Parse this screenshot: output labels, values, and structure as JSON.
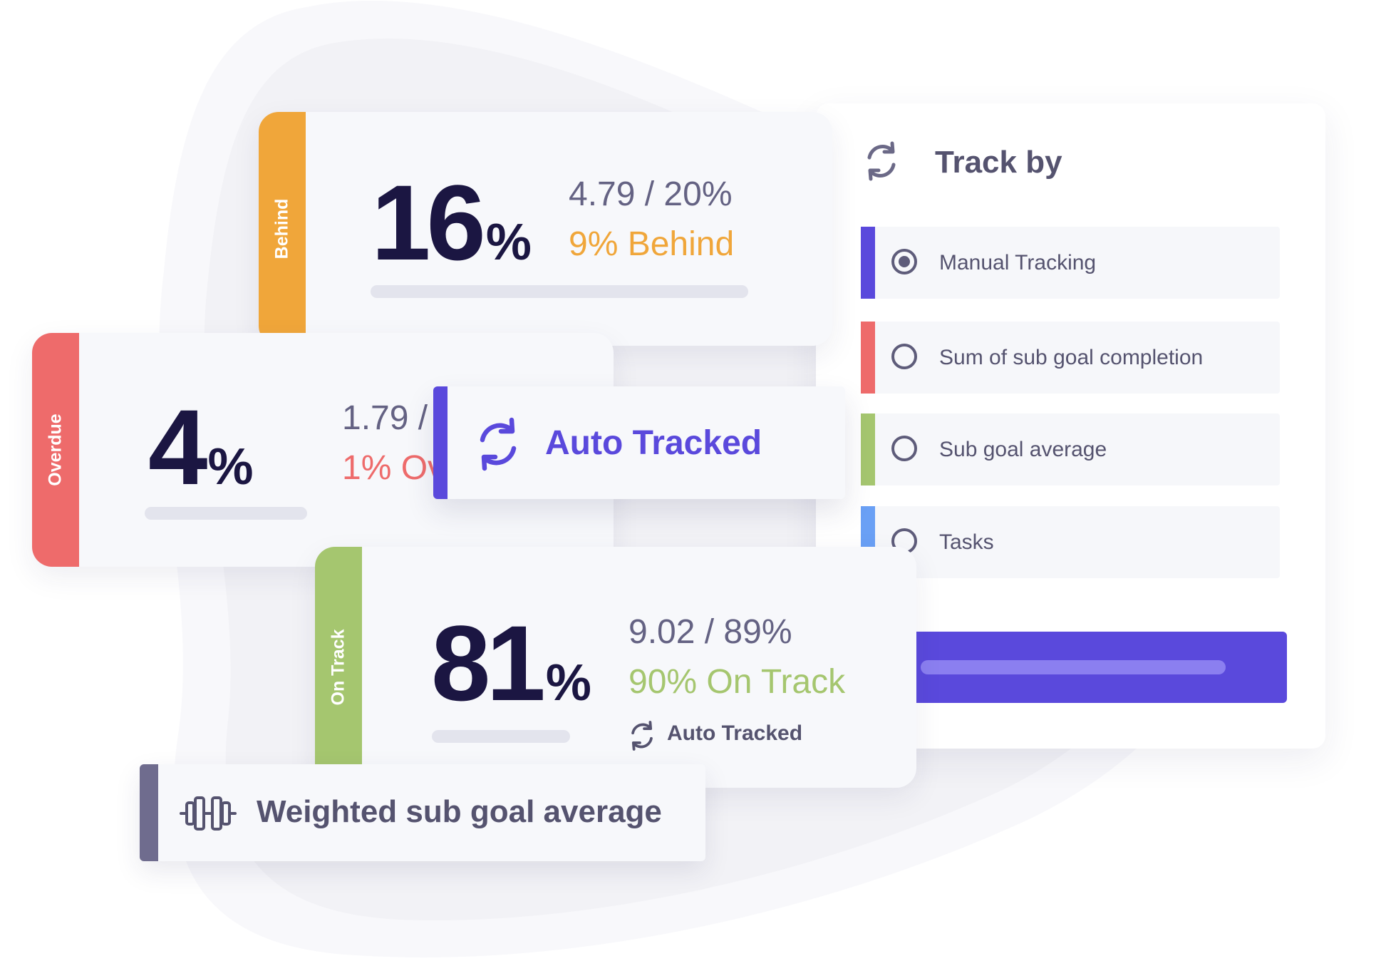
{
  "colors": {
    "behind": "#f0a63a",
    "overdue": "#ee6b6b",
    "on_track": "#a5c66f",
    "brand": "#5a49dc",
    "muted": "#6f6c8e",
    "tasks": "#6aa0f5",
    "ink": "#1b1642"
  },
  "cards": {
    "behind": {
      "tag": "Behind",
      "percent": "16",
      "percent_sign": "%",
      "fraction": "4.79 / 20%",
      "status": "9% Behind"
    },
    "overdue": {
      "tag": "Overdue",
      "percent": "4",
      "percent_sign": "%",
      "fraction": "1.79 /",
      "status": "1% Ov"
    },
    "on_track": {
      "tag": "On Track",
      "percent": "81",
      "percent_sign": "%",
      "fraction": "9.02 / 89%",
      "status": "90% On Track",
      "auto_label": "Auto Tracked"
    }
  },
  "auto_tracked_pill": {
    "label": "Auto Tracked",
    "icon": "sync-icon"
  },
  "weighted_pill": {
    "label": "Weighted sub goal average",
    "icon": "dumbbell-icon"
  },
  "track_by": {
    "title": "Track by",
    "icon": "sync-icon",
    "options": [
      {
        "label": "Manual Tracking",
        "selected": true
      },
      {
        "label": "Sum of sub goal completion",
        "selected": false
      },
      {
        "label": "Sub goal average",
        "selected": false
      },
      {
        "label": "Tasks",
        "selected": false
      }
    ]
  }
}
